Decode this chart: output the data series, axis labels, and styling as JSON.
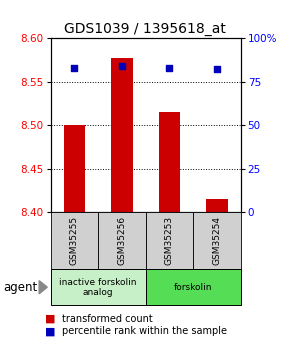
{
  "title": "GDS1039 / 1395618_at",
  "samples": [
    "GSM35255",
    "GSM35256",
    "GSM35253",
    "GSM35254"
  ],
  "bar_values": [
    8.5,
    8.577,
    8.515,
    8.415
  ],
  "percentile_values": [
    83,
    84,
    83,
    82
  ],
  "ylim_left": [
    8.4,
    8.6
  ],
  "ylim_right": [
    0,
    100
  ],
  "yticks_left": [
    8.4,
    8.45,
    8.5,
    8.55,
    8.6
  ],
  "yticks_right": [
    0,
    25,
    50,
    75,
    100
  ],
  "ytick_labels_right": [
    "0",
    "25",
    "50",
    "75",
    "100%"
  ],
  "bar_color": "#cc0000",
  "dot_color": "#0000bb",
  "bar_bottom": 8.4,
  "groups": [
    {
      "label": "inactive forskolin\nanalog",
      "indices": [
        0,
        1
      ],
      "color": "#c8f0c8"
    },
    {
      "label": "forskolin",
      "indices": [
        2,
        3
      ],
      "color": "#55dd55"
    }
  ],
  "agent_label": "agent",
  "legend_items": [
    {
      "color": "#cc0000",
      "label": "transformed count"
    },
    {
      "color": "#0000bb",
      "label": "percentile rank within the sample"
    }
  ],
  "sample_box_color": "#d0d0d0",
  "dot_size": 25,
  "title_fontsize": 10,
  "tick_fontsize": 7.5,
  "bar_width": 0.45
}
